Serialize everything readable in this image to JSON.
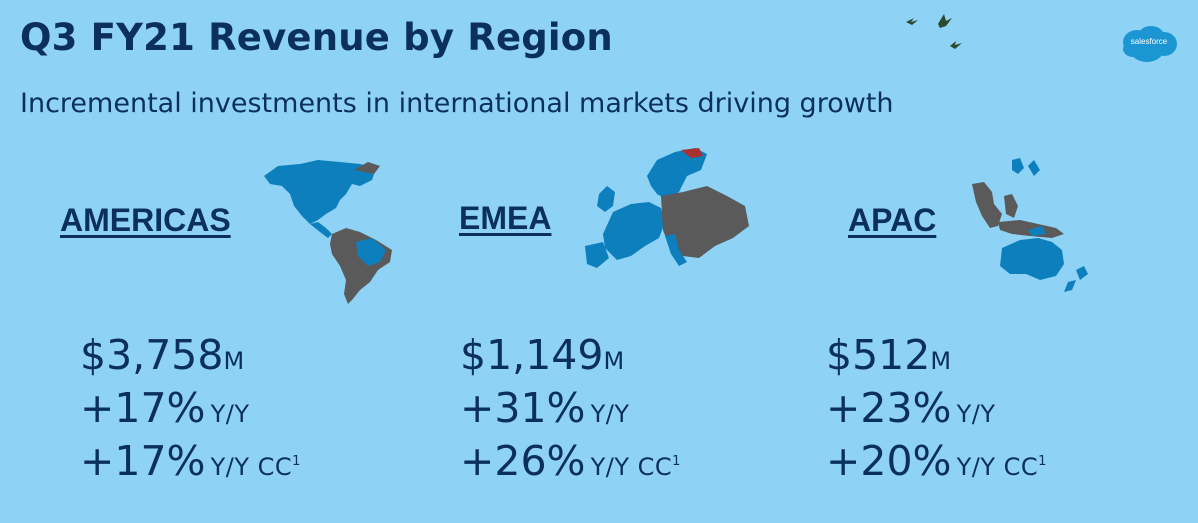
{
  "header": {
    "title": "Q3 FY21 Revenue by Region",
    "subtitle": "Incremental investments in international markets driving growth"
  },
  "brand": {
    "logo_text": "salesforce",
    "colors": {
      "background": "#8ed3f6",
      "title": "#0b2f5e",
      "map_highlight": "#0d7fbd",
      "map_dark": "#5a5a5a",
      "logo": "#1b96d3"
    }
  },
  "regions": [
    {
      "name": "AMERICAS",
      "revenue": "$3,758",
      "revenue_unit": "M",
      "growth": "+17%",
      "growth_label": "Y/Y",
      "growth_cc": "+17%",
      "growth_cc_label": "Y/Y CC",
      "footnote": "1",
      "map_icon": "americas-map-icon"
    },
    {
      "name": "EMEA",
      "revenue": "$1,149",
      "revenue_unit": "M",
      "growth": "+31%",
      "growth_label": "Y/Y",
      "growth_cc": "+26%",
      "growth_cc_label": "Y/Y CC",
      "footnote": "1",
      "map_icon": "europe-map-icon"
    },
    {
      "name": "APAC",
      "revenue": "$512",
      "revenue_unit": "M",
      "growth": "+23%",
      "growth_label": "Y/Y",
      "growth_cc": "+20%",
      "growth_cc_label": "Y/Y CC",
      "footnote": "1",
      "map_icon": "asia-pacific-map-icon"
    }
  ]
}
